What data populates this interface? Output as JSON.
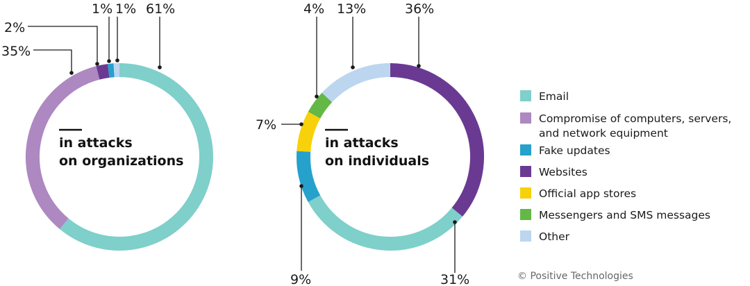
{
  "colors": {
    "email": "#7fcfcb",
    "compromise": "#ad88c1",
    "fake_updates": "#25a1cc",
    "websites": "#6a3a92",
    "app_stores": "#f7d10a",
    "messengers": "#63b846",
    "other": "#bcd6ef"
  },
  "legend": [
    {
      "key": "email",
      "label": [
        "Email"
      ]
    },
    {
      "key": "compromise",
      "label": [
        "Compromise of computers, servers,",
        "and network equipment"
      ]
    },
    {
      "key": "fake_updates",
      "label": [
        "Fake updates"
      ]
    },
    {
      "key": "websites",
      "label": [
        "Websites"
      ]
    },
    {
      "key": "app_stores",
      "label": [
        "Official app stores"
      ]
    },
    {
      "key": "messengers",
      "label": [
        "Messengers and SMS messages"
      ]
    },
    {
      "key": "other",
      "label": [
        "Other"
      ]
    }
  ],
  "credit": "© Positive Technologies",
  "chart_data": [
    {
      "type": "pie",
      "center_label": [
        "in attacks",
        "on organizations"
      ],
      "slices": [
        {
          "key": "email",
          "value": 61,
          "label": "61%"
        },
        {
          "key": "compromise",
          "value": 35,
          "label": "35%"
        },
        {
          "key": "websites",
          "value": 2,
          "label": "2%"
        },
        {
          "key": "fake_updates",
          "value": 1,
          "label": "1%"
        },
        {
          "key": "other",
          "value": 1,
          "label": "1%"
        }
      ]
    },
    {
      "type": "pie",
      "center_label": [
        "in attacks",
        "on individuals"
      ],
      "slices": [
        {
          "key": "websites",
          "value": 36,
          "label": "36%"
        },
        {
          "key": "email",
          "value": 31,
          "label": "31%"
        },
        {
          "key": "fake_updates",
          "value": 9,
          "label": "9%"
        },
        {
          "key": "app_stores",
          "value": 7,
          "label": "7%"
        },
        {
          "key": "messengers",
          "value": 4,
          "label": "4%"
        },
        {
          "key": "other",
          "value": 13,
          "label": "13%"
        }
      ]
    }
  ]
}
